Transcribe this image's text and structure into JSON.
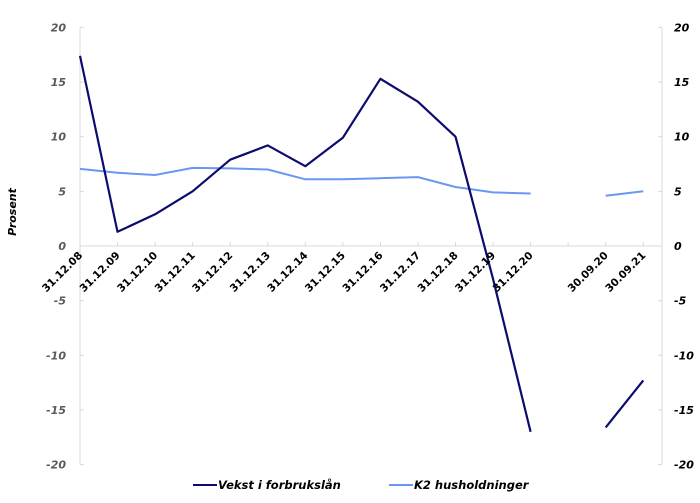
{
  "chart_data": {
    "type": "line",
    "title": "",
    "xlabel": "",
    "ylabel": "Prosent",
    "ylim": [
      -20,
      20
    ],
    "y_ticks": [
      20,
      15,
      10,
      5,
      0,
      -5,
      -10,
      -15,
      -20
    ],
    "y2lim": [
      -20,
      20
    ],
    "y2_ticks": [
      20,
      15,
      10,
      5,
      0,
      -5,
      -10,
      -15,
      -20
    ],
    "grid": false,
    "legend_position": "bottom",
    "categories": [
      "31.12.08",
      "31.12.09",
      "31.12.10",
      "31.12.11",
      "31.12.12",
      "31.12.13",
      "31.12.14",
      "31.12.15",
      "31.12.16",
      "31.12.17",
      "31.12.18",
      "31.12.19",
      "31.12.20",
      "",
      "30.09.20",
      "30.09.21"
    ],
    "series": [
      {
        "name": "Vekst i forbrukslån",
        "color": "#0c0c6e",
        "values": [
          17.4,
          1.3,
          2.9,
          5.0,
          7.9,
          9.2,
          7.3,
          9.9,
          15.3,
          13.2,
          10.0,
          -3.0,
          -17.0,
          null,
          -16.6,
          -12.3
        ]
      },
      {
        "name": "K2 husholdninger",
        "color": "#6a98f0",
        "values": [
          7.05,
          6.7,
          6.5,
          7.15,
          7.1,
          7.0,
          6.1,
          6.1,
          6.2,
          6.3,
          5.4,
          4.9,
          4.8,
          null,
          4.6,
          5.0
        ]
      }
    ]
  },
  "legend": {
    "items": [
      {
        "label": "Vekst i forbrukslån",
        "color": "#0c0c6e"
      },
      {
        "label": "K2 husholdninger",
        "color": "#6a98f0"
      }
    ]
  }
}
